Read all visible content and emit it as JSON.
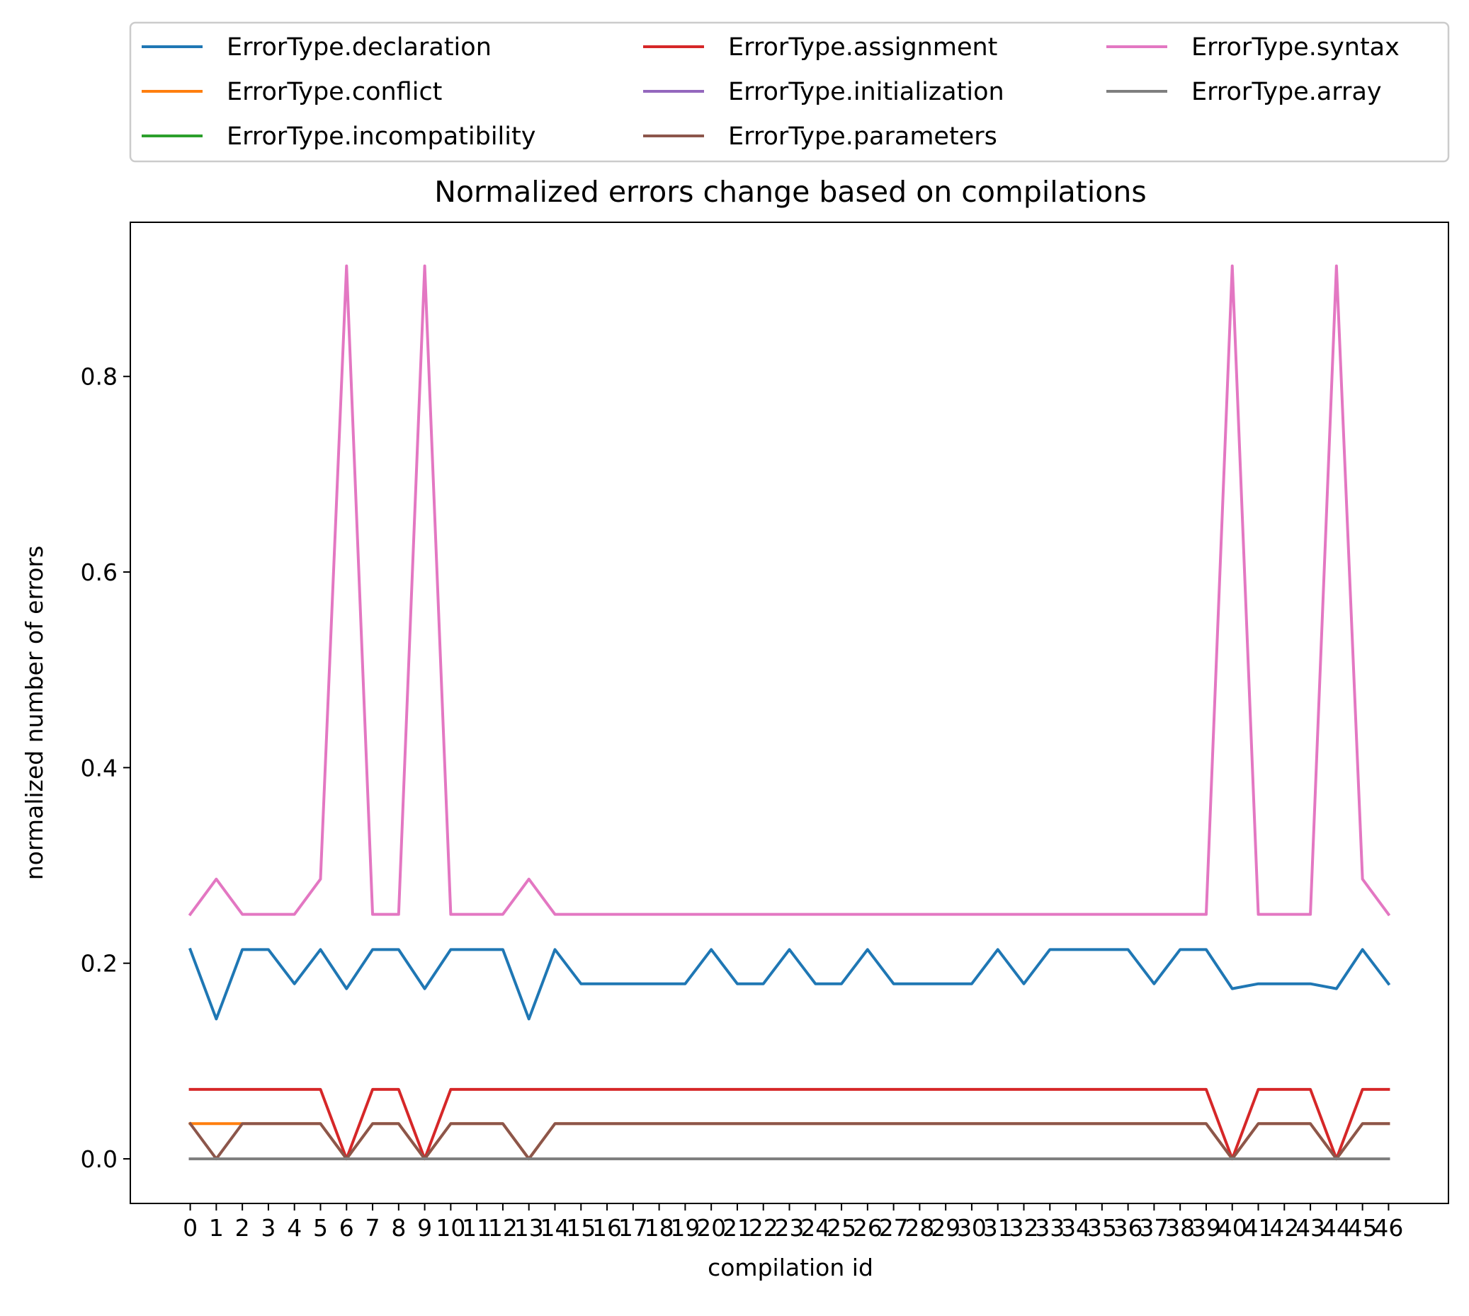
{
  "chart_data": {
    "type": "line",
    "title": "Normalized errors change based on compilations",
    "xlabel": "compilation id",
    "ylabel": "normalized number of errors",
    "xlim": [
      -2.3,
      48.3
    ],
    "ylim": [
      -0.0456,
      0.9576
    ],
    "yticks": [
      0.0,
      0.2,
      0.4,
      0.6,
      0.8
    ],
    "ytick_labels": [
      "0.0",
      "0.2",
      "0.4",
      "0.6",
      "0.8"
    ],
    "x": [
      0,
      1,
      2,
      3,
      4,
      5,
      6,
      7,
      8,
      9,
      10,
      11,
      12,
      13,
      14,
      15,
      16,
      17,
      18,
      19,
      20,
      21,
      22,
      23,
      24,
      25,
      26,
      27,
      28,
      29,
      30,
      31,
      32,
      33,
      34,
      35,
      36,
      37,
      38,
      39,
      40,
      41,
      42,
      43,
      44,
      45,
      46
    ],
    "xtick_labels": [
      "0",
      "1",
      "2",
      "3",
      "4",
      "5",
      "6",
      "7",
      "8",
      "9",
      "10",
      "11",
      "12",
      "13",
      "14",
      "15",
      "16",
      "17",
      "18",
      "19",
      "20",
      "21",
      "22",
      "23",
      "24",
      "25",
      "26",
      "27",
      "28",
      "29",
      "30",
      "31",
      "32",
      "33",
      "34",
      "35",
      "36",
      "37",
      "38",
      "39",
      "40",
      "41",
      "42",
      "43",
      "44",
      "45",
      "46"
    ],
    "legend_position": "above plot, 3 columns",
    "series": [
      {
        "name": "ErrorType.declaration",
        "color": "#1f77b4",
        "values": [
          0.214,
          0.143,
          0.214,
          0.214,
          0.179,
          0.214,
          0.174,
          0.214,
          0.214,
          0.174,
          0.214,
          0.214,
          0.214,
          0.143,
          0.214,
          0.179,
          0.179,
          0.179,
          0.179,
          0.179,
          0.214,
          0.179,
          0.179,
          0.214,
          0.179,
          0.179,
          0.214,
          0.179,
          0.179,
          0.179,
          0.179,
          0.214,
          0.179,
          0.214,
          0.214,
          0.214,
          0.214,
          0.179,
          0.214,
          0.214,
          0.174,
          0.179,
          0.179,
          0.179,
          0.174,
          0.214,
          0.179
        ]
      },
      {
        "name": "ErrorType.conflict",
        "color": "#ff7f0e",
        "values": [
          0.036,
          0.036,
          0.036,
          0.036,
          0.036,
          0.036,
          0.0,
          0.036,
          0.036,
          0.0,
          0.036,
          0.036,
          0.036,
          0.0,
          0.036,
          0.036,
          0.036,
          0.036,
          0.036,
          0.036,
          0.036,
          0.036,
          0.036,
          0.036,
          0.036,
          0.036,
          0.036,
          0.036,
          0.036,
          0.036,
          0.036,
          0.036,
          0.036,
          0.036,
          0.036,
          0.036,
          0.036,
          0.036,
          0.036,
          0.036,
          0.0,
          0.036,
          0.036,
          0.036,
          0.0,
          0.036,
          0.036
        ]
      },
      {
        "name": "ErrorType.incompatibility",
        "color": "#2ca02c",
        "values": [
          0,
          0,
          0,
          0,
          0,
          0,
          0,
          0,
          0,
          0,
          0,
          0,
          0,
          0,
          0,
          0,
          0,
          0,
          0,
          0,
          0,
          0,
          0,
          0,
          0,
          0,
          0,
          0,
          0,
          0,
          0,
          0,
          0,
          0,
          0,
          0,
          0,
          0,
          0,
          0,
          0,
          0,
          0,
          0,
          0,
          0,
          0
        ]
      },
      {
        "name": "ErrorType.assignment",
        "color": "#d62728",
        "values": [
          0.071,
          0.071,
          0.071,
          0.071,
          0.071,
          0.071,
          0.0,
          0.071,
          0.071,
          0.0,
          0.071,
          0.071,
          0.071,
          0.071,
          0.071,
          0.071,
          0.071,
          0.071,
          0.071,
          0.071,
          0.071,
          0.071,
          0.071,
          0.071,
          0.071,
          0.071,
          0.071,
          0.071,
          0.071,
          0.071,
          0.071,
          0.071,
          0.071,
          0.071,
          0.071,
          0.071,
          0.071,
          0.071,
          0.071,
          0.071,
          0.0,
          0.071,
          0.071,
          0.071,
          0.0,
          0.071,
          0.071
        ]
      },
      {
        "name": "ErrorType.initialization",
        "color": "#9467bd",
        "values": [
          0,
          0,
          0,
          0,
          0,
          0,
          0,
          0,
          0,
          0,
          0,
          0,
          0,
          0,
          0,
          0,
          0,
          0,
          0,
          0,
          0,
          0,
          0,
          0,
          0,
          0,
          0,
          0,
          0,
          0,
          0,
          0,
          0,
          0,
          0,
          0,
          0,
          0,
          0,
          0,
          0,
          0,
          0,
          0,
          0,
          0,
          0
        ]
      },
      {
        "name": "ErrorType.parameters",
        "color": "#8c564b",
        "values": [
          0.036,
          0.0,
          0.036,
          0.036,
          0.036,
          0.036,
          0.0,
          0.036,
          0.036,
          0.0,
          0.036,
          0.036,
          0.036,
          0.0,
          0.036,
          0.036,
          0.036,
          0.036,
          0.036,
          0.036,
          0.036,
          0.036,
          0.036,
          0.036,
          0.036,
          0.036,
          0.036,
          0.036,
          0.036,
          0.036,
          0.036,
          0.036,
          0.036,
          0.036,
          0.036,
          0.036,
          0.036,
          0.036,
          0.036,
          0.036,
          0.0,
          0.036,
          0.036,
          0.036,
          0.0,
          0.036,
          0.036
        ]
      },
      {
        "name": "ErrorType.syntax",
        "color": "#e377c2",
        "values": [
          0.25,
          0.286,
          0.25,
          0.25,
          0.25,
          0.286,
          0.913,
          0.25,
          0.25,
          0.913,
          0.25,
          0.25,
          0.25,
          0.286,
          0.25,
          0.25,
          0.25,
          0.25,
          0.25,
          0.25,
          0.25,
          0.25,
          0.25,
          0.25,
          0.25,
          0.25,
          0.25,
          0.25,
          0.25,
          0.25,
          0.25,
          0.25,
          0.25,
          0.25,
          0.25,
          0.25,
          0.25,
          0.25,
          0.25,
          0.25,
          0.913,
          0.25,
          0.25,
          0.25,
          0.913,
          0.286,
          0.25
        ]
      },
      {
        "name": "ErrorType.array",
        "color": "#7f7f7f",
        "values": [
          0,
          0,
          0,
          0,
          0,
          0,
          0,
          0,
          0,
          0,
          0,
          0,
          0,
          0,
          0,
          0,
          0,
          0,
          0,
          0,
          0,
          0,
          0,
          0,
          0,
          0,
          0,
          0,
          0,
          0,
          0,
          0,
          0,
          0,
          0,
          0,
          0,
          0,
          0,
          0,
          0,
          0,
          0,
          0,
          0,
          0,
          0
        ]
      }
    ]
  }
}
